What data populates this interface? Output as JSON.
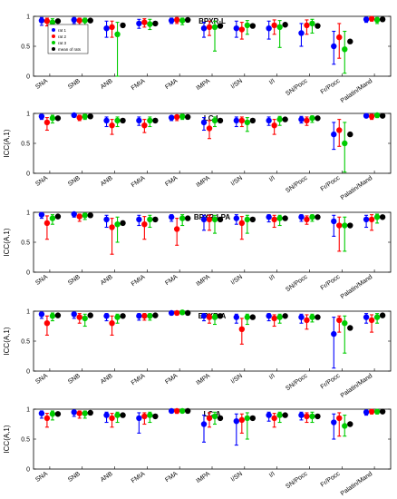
{
  "colors": {
    "rater1": "#0000ff",
    "rater2": "#ff0000",
    "rater3": "#00cc00",
    "mean": "#000000"
  },
  "legend": {
    "placement": "top-left",
    "entries": [
      "rat 1",
      "rat 2",
      "rat 3",
      "mean of rats"
    ]
  },
  "chart_data": [
    {
      "type": "scatter",
      "title": "BPXR-L",
      "ylabel": "",
      "ylim": [
        0,
        1
      ],
      "yticks": [
        0,
        0.5,
        1
      ],
      "categories": [
        "SNA",
        "SNB",
        "ANB",
        "FMIA",
        "FMA",
        "IMPA",
        "I/SN",
        "I/I",
        "SN/Pocc",
        "Fr/Pocc",
        "Palatin/Mand"
      ],
      "series": [
        {
          "name": "rat 1",
          "values": [
            0.93,
            0.94,
            0.8,
            0.88,
            0.93,
            0.8,
            0.8,
            0.8,
            0.72,
            0.5,
            0.95
          ],
          "lower": [
            0.85,
            0.88,
            0.65,
            0.8,
            0.88,
            0.65,
            0.65,
            0.62,
            0.5,
            0.2,
            0.9
          ],
          "upper": [
            0.98,
            0.98,
            0.92,
            0.95,
            0.97,
            0.9,
            0.92,
            0.92,
            0.88,
            0.75,
            0.98
          ]
        },
        {
          "name": "rat 2",
          "values": [
            0.92,
            0.93,
            0.82,
            0.9,
            0.94,
            0.82,
            0.78,
            0.85,
            0.85,
            0.65,
            0.96
          ],
          "lower": [
            0.84,
            0.86,
            0.65,
            0.82,
            0.88,
            0.68,
            0.62,
            0.7,
            0.7,
            0.3,
            0.92
          ],
          "upper": [
            0.97,
            0.97,
            0.92,
            0.96,
            0.98,
            0.92,
            0.9,
            0.94,
            0.94,
            0.88,
            0.99
          ]
        },
        {
          "name": "rat 3",
          "values": [
            0.9,
            0.93,
            0.7,
            0.87,
            0.93,
            0.82,
            0.85,
            0.82,
            0.88,
            0.45,
            0.94
          ],
          "lower": [
            0.8,
            0.85,
            0.0,
            0.78,
            0.86,
            0.42,
            0.7,
            0.48,
            0.72,
            0.05,
            0.88
          ],
          "upper": [
            0.96,
            0.97,
            0.9,
            0.95,
            0.97,
            0.92,
            0.93,
            0.93,
            0.95,
            0.75,
            0.98
          ]
        },
        {
          "name": "mean of rats",
          "values": [
            0.92,
            0.93,
            0.85,
            0.88,
            0.94,
            0.84,
            0.84,
            0.86,
            0.84,
            0.58,
            0.95
          ]
        }
      ]
    },
    {
      "type": "scatter",
      "title": "LC-L",
      "ylabel": "ICC(A,1)",
      "ylim": [
        0,
        1
      ],
      "yticks": [
        0,
        0.5,
        1
      ],
      "categories": [
        "SNA",
        "SNB",
        "ANB",
        "FMIA",
        "FMA",
        "IMPA",
        "I/SN",
        "I/I",
        "SN/Pocc",
        "Fr/Pocc",
        "Palatin/Mand"
      ],
      "series": [
        {
          "name": "rat 1",
          "values": [
            0.95,
            0.97,
            0.88,
            0.88,
            0.93,
            0.85,
            0.88,
            0.88,
            0.9,
            0.65,
            0.96
          ],
          "lower": [
            0.9,
            0.94,
            0.78,
            0.8,
            0.88,
            0.72,
            0.78,
            0.8,
            0.84,
            0.4,
            0.93
          ],
          "upper": [
            0.98,
            0.99,
            0.94,
            0.94,
            0.96,
            0.93,
            0.94,
            0.94,
            0.95,
            0.85,
            0.99
          ]
        },
        {
          "name": "rat 2",
          "values": [
            0.85,
            0.93,
            0.8,
            0.8,
            0.94,
            0.75,
            0.88,
            0.8,
            0.88,
            0.72,
            0.95
          ],
          "lower": [
            0.72,
            0.88,
            0.65,
            0.68,
            0.88,
            0.58,
            0.78,
            0.65,
            0.8,
            0.45,
            0.9
          ],
          "upper": [
            0.93,
            0.97,
            0.9,
            0.9,
            0.97,
            0.88,
            0.94,
            0.9,
            0.94,
            0.9,
            0.98
          ]
        },
        {
          "name": "rat 3",
          "values": [
            0.92,
            0.95,
            0.88,
            0.88,
            0.95,
            0.88,
            0.85,
            0.9,
            0.92,
            0.5,
            0.97
          ],
          "lower": [
            0.84,
            0.9,
            0.78,
            0.78,
            0.9,
            0.78,
            0.7,
            0.8,
            0.85,
            0.02,
            0.93
          ],
          "upper": [
            0.97,
            0.98,
            0.94,
            0.94,
            0.98,
            0.94,
            0.93,
            0.95,
            0.96,
            0.85,
            0.99
          ]
        },
        {
          "name": "mean of rats",
          "values": [
            0.92,
            0.95,
            0.88,
            0.88,
            0.94,
            0.88,
            0.88,
            0.9,
            0.92,
            0.65,
            0.96
          ]
        }
      ]
    },
    {
      "type": "scatter",
      "title": "BPXR-LPA",
      "ylabel": "ICC(A,1)",
      "ylim": [
        0,
        1
      ],
      "yticks": [
        0,
        0.5,
        1
      ],
      "categories": [
        "SNA",
        "SNB",
        "ANB",
        "FMIA",
        "FMA",
        "IMPA",
        "I/SN",
        "I/I",
        "SN/Pocc",
        "Fr/Pocc",
        "Palatin/Mand"
      ],
      "series": [
        {
          "name": "rat 1",
          "values": [
            0.96,
            0.97,
            0.88,
            0.88,
            0.92,
            0.88,
            0.9,
            0.92,
            0.92,
            0.85,
            0.88
          ],
          "lower": [
            0.9,
            0.92,
            0.75,
            0.78,
            0.85,
            0.7,
            0.8,
            0.84,
            0.85,
            0.6,
            0.75
          ],
          "upper": [
            0.99,
            0.99,
            0.95,
            0.95,
            0.96,
            0.95,
            0.96,
            0.96,
            0.96,
            0.95,
            0.95
          ]
        },
        {
          "name": "rat 2",
          "values": [
            0.82,
            0.93,
            0.75,
            0.8,
            0.72,
            0.88,
            0.82,
            0.88,
            0.88,
            0.78,
            0.88
          ],
          "lower": [
            0.55,
            0.85,
            0.3,
            0.55,
            0.45,
            0.7,
            0.55,
            0.75,
            0.8,
            0.35,
            0.7
          ],
          "upper": [
            0.94,
            0.97,
            0.9,
            0.93,
            0.9,
            0.95,
            0.93,
            0.95,
            0.94,
            0.92,
            0.96
          ]
        },
        {
          "name": "rat 3",
          "values": [
            0.9,
            0.95,
            0.8,
            0.88,
            0.9,
            0.88,
            0.88,
            0.9,
            0.92,
            0.78,
            0.92
          ],
          "lower": [
            0.8,
            0.88,
            0.5,
            0.75,
            0.78,
            0.65,
            0.65,
            0.78,
            0.85,
            0.35,
            0.82
          ],
          "upper": [
            0.96,
            0.98,
            0.92,
            0.95,
            0.96,
            0.95,
            0.95,
            0.95,
            0.96,
            0.92,
            0.97
          ]
        },
        {
          "name": "mean of rats",
          "values": [
            0.93,
            0.95,
            0.82,
            0.88,
            0.9,
            0.88,
            0.88,
            0.9,
            0.92,
            0.78,
            0.92
          ]
        }
      ]
    },
    {
      "type": "scatter",
      "title": "BPXR-A",
      "ylabel": "ICC(A,1)",
      "ylim": [
        0,
        1
      ],
      "yticks": [
        0,
        0.5,
        1
      ],
      "categories": [
        "SNA",
        "SNB",
        "ANB",
        "FMIA",
        "FMA",
        "IMPA",
        "I/SN",
        "I/I",
        "SN/Pocc",
        "Fr/Pocc",
        "Palatin/Mand"
      ],
      "series": [
        {
          "name": "rat 1",
          "values": [
            0.95,
            0.95,
            0.92,
            0.92,
            0.97,
            0.92,
            0.9,
            0.92,
            0.9,
            0.62,
            0.9
          ],
          "lower": [
            0.88,
            0.88,
            0.84,
            0.85,
            0.94,
            0.84,
            0.8,
            0.84,
            0.8,
            0.05,
            0.8
          ],
          "upper": [
            0.98,
            0.98,
            0.96,
            0.96,
            0.99,
            0.96,
            0.95,
            0.96,
            0.95,
            0.9,
            0.96
          ]
        },
        {
          "name": "rat 2",
          "values": [
            0.8,
            0.9,
            0.8,
            0.92,
            0.97,
            0.9,
            0.7,
            0.88,
            0.85,
            0.85,
            0.85
          ],
          "lower": [
            0.6,
            0.8,
            0.6,
            0.85,
            0.94,
            0.8,
            0.45,
            0.75,
            0.7,
            0.65,
            0.65
          ],
          "upper": [
            0.92,
            0.96,
            0.92,
            0.96,
            0.99,
            0.95,
            0.88,
            0.94,
            0.94,
            0.92,
            0.94
          ]
        },
        {
          "name": "rat 3",
          "values": [
            0.92,
            0.88,
            0.9,
            0.92,
            0.98,
            0.9,
            0.9,
            0.9,
            0.9,
            0.8,
            0.9
          ],
          "lower": [
            0.84,
            0.75,
            0.8,
            0.85,
            0.95,
            0.78,
            0.78,
            0.8,
            0.82,
            0.3,
            0.8
          ],
          "upper": [
            0.97,
            0.95,
            0.95,
            0.96,
            0.99,
            0.95,
            0.95,
            0.95,
            0.95,
            0.92,
            0.96
          ]
        },
        {
          "name": "mean of rats",
          "values": [
            0.93,
            0.93,
            0.92,
            0.93,
            0.97,
            0.92,
            0.9,
            0.92,
            0.9,
            0.72,
            0.93
          ]
        }
      ]
    },
    {
      "type": "scatter",
      "title": "LC-A",
      "ylabel": "ICC(A,1)",
      "ylim": [
        0,
        1
      ],
      "yticks": [
        0,
        0.5,
        1
      ],
      "categories": [
        "SNA",
        "SNB",
        "ANB",
        "FMIA",
        "FMA",
        "IMPA",
        "I/SN",
        "I/I",
        "SN/Pocc",
        "Fr/Pocc",
        "Palatin/Mand"
      ],
      "series": [
        {
          "name": "rat 1",
          "values": [
            0.93,
            0.95,
            0.9,
            0.85,
            0.97,
            0.75,
            0.8,
            0.9,
            0.9,
            0.78,
            0.95
          ],
          "lower": [
            0.85,
            0.88,
            0.78,
            0.6,
            0.94,
            0.45,
            0.4,
            0.8,
            0.82,
            0.5,
            0.9
          ],
          "upper": [
            0.97,
            0.98,
            0.95,
            0.94,
            0.99,
            0.9,
            0.92,
            0.95,
            0.95,
            0.92,
            0.98
          ]
        },
        {
          "name": "rat 2",
          "values": [
            0.85,
            0.93,
            0.85,
            0.88,
            0.97,
            0.85,
            0.82,
            0.85,
            0.88,
            0.85,
            0.96
          ],
          "lower": [
            0.7,
            0.85,
            0.7,
            0.75,
            0.93,
            0.7,
            0.6,
            0.7,
            0.78,
            0.55,
            0.92
          ],
          "upper": [
            0.93,
            0.97,
            0.93,
            0.94,
            0.99,
            0.94,
            0.92,
            0.93,
            0.94,
            0.94,
            0.99
          ]
        },
        {
          "name": "rat 3",
          "values": [
            0.92,
            0.93,
            0.9,
            0.9,
            0.97,
            0.88,
            0.85,
            0.9,
            0.88,
            0.72,
            0.96
          ],
          "lower": [
            0.82,
            0.85,
            0.78,
            0.78,
            0.94,
            0.75,
            0.5,
            0.78,
            0.78,
            0.55,
            0.92
          ],
          "upper": [
            0.97,
            0.97,
            0.95,
            0.95,
            0.99,
            0.95,
            0.94,
            0.95,
            0.95,
            0.9,
            0.98
          ]
        },
        {
          "name": "mean of rats",
          "values": [
            0.92,
            0.94,
            0.9,
            0.88,
            0.97,
            0.85,
            0.85,
            0.9,
            0.88,
            0.75,
            0.96
          ]
        }
      ]
    }
  ]
}
